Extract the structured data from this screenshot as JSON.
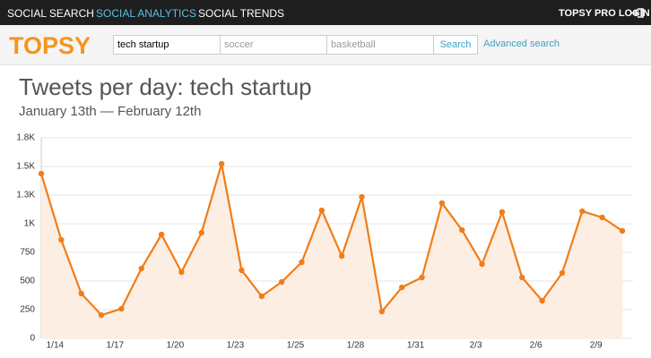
{
  "nav": {
    "items": [
      "SOCIAL SEARCH",
      "SOCIAL ANALYTICS",
      "SOCIAL TRENDS"
    ],
    "login": "TOPSY PRO LOGIN"
  },
  "search": {
    "logo": "TOPSY",
    "inputs": [
      "tech startup",
      "soccer",
      "basketball"
    ],
    "button": "Search",
    "link": "Advanced search"
  },
  "chart_data": {
    "type": "line",
    "title": "Tweets per day: tech startup",
    "subtitle": "January 13th — February 12th",
    "categories": [
      null,
      "1/14",
      null,
      null,
      "1/17",
      null,
      null,
      "1/20",
      null,
      null,
      "1/23",
      null,
      null,
      "1/25",
      null,
      null,
      "1/28",
      null,
      null,
      "1/31",
      null,
      null,
      "2/3",
      null,
      null,
      "2/6",
      null,
      null,
      "2/9",
      null
    ],
    "values": [
      1437,
      859,
      391,
      203,
      258,
      609,
      906,
      578,
      922,
      1523,
      594,
      367,
      492,
      664,
      1117,
      719,
      1234,
      234,
      445,
      531,
      1180,
      945,
      648,
      1102,
      531,
      328,
      570,
      1109,
      1055,
      938
    ],
    "color": "#f07d1a",
    "fill": "#fdeee3",
    "ylim": [
      0,
      1750
    ],
    "yticks": [
      0,
      250,
      500,
      750,
      {
        "value": 1000,
        "label": "1K"
      },
      {
        "value": 1250,
        "label": "1.3K"
      },
      {
        "value": 1500,
        "label": "1.5K"
      },
      {
        "value": 1750,
        "label": "1.8K"
      }
    ],
    "grid": true
  }
}
